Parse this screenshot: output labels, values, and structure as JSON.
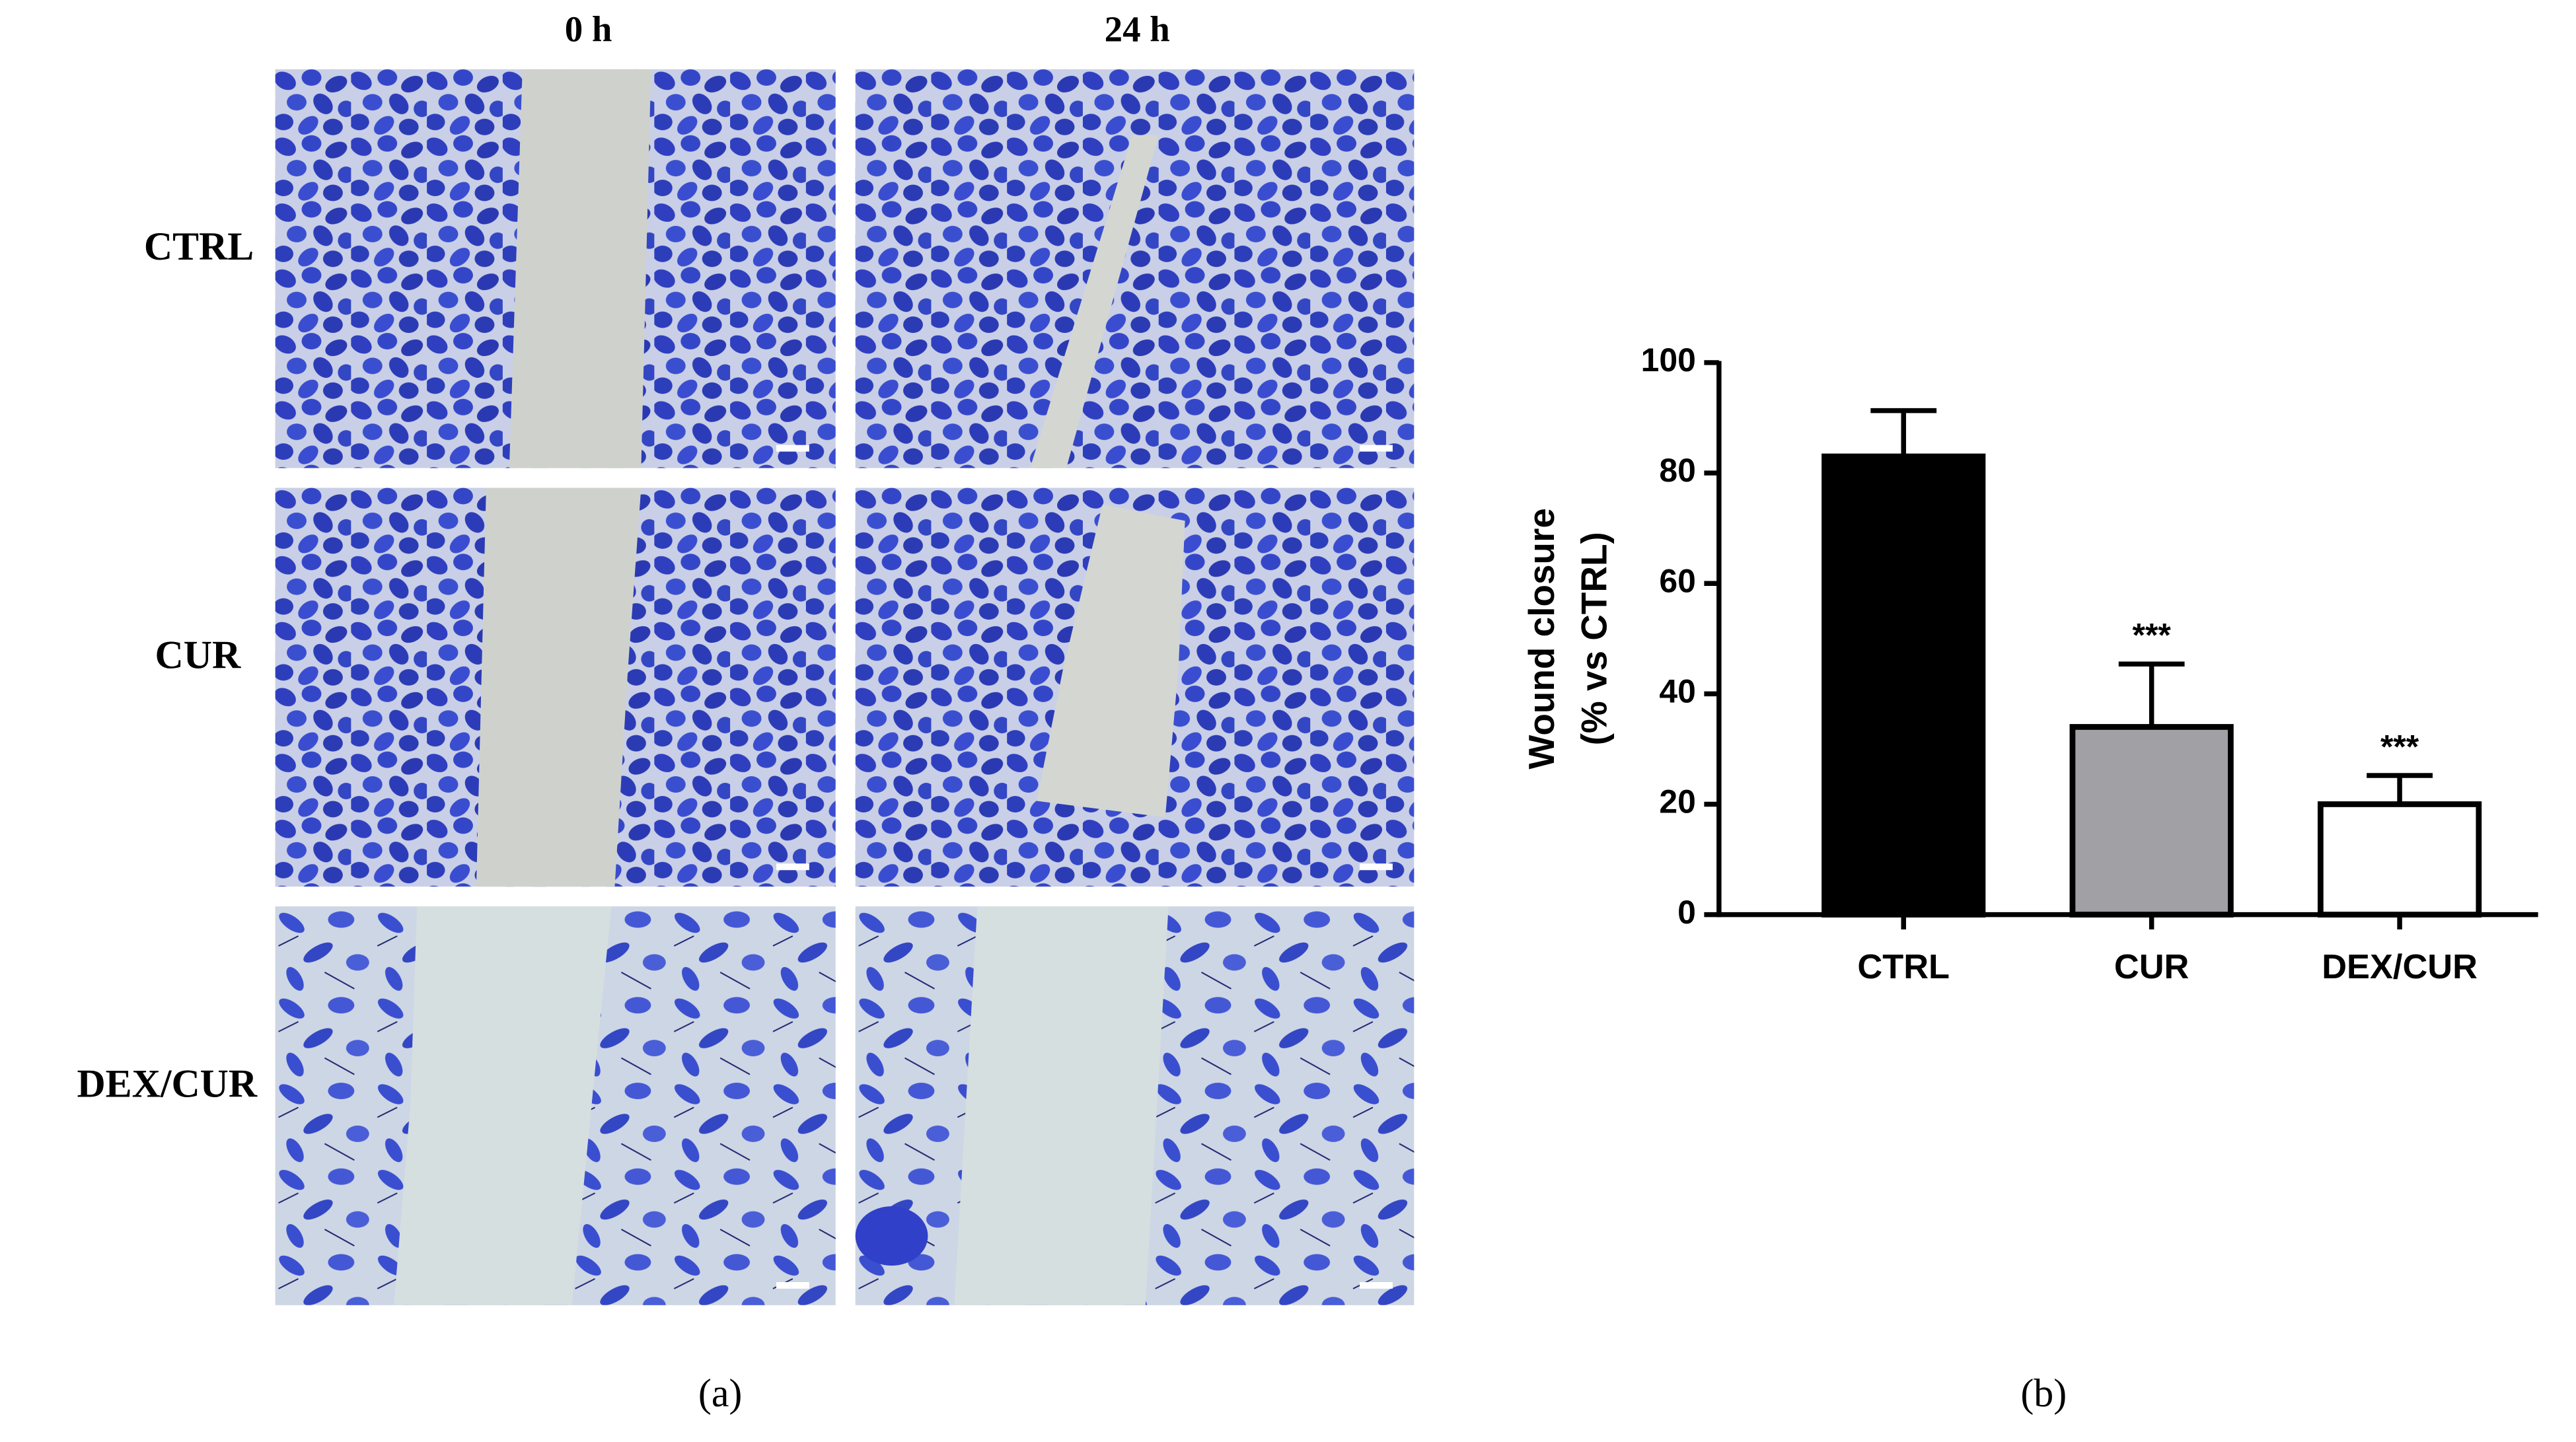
{
  "panel_a": {
    "label": "(a)",
    "columns": [
      "0 h",
      "24 h"
    ],
    "rows": [
      "CTRL",
      "CUR",
      "DEX/CUR"
    ]
  },
  "panel_b": {
    "label": "(b)"
  },
  "chart_data": {
    "type": "bar",
    "y_label": [
      "Wound closure",
      "(% vs CTRL)"
    ],
    "categories": [
      "CTRL",
      "CUR",
      "DEX/CUR"
    ],
    "values": [
      83,
      34,
      20
    ],
    "errors": [
      8.3,
      11.4,
      5.2
    ],
    "colors": [
      "#000000",
      "#a1a1a5",
      "#ffffff"
    ],
    "annotations": [
      null,
      "***",
      "***"
    ],
    "ylim": [
      0,
      100
    ],
    "yticks": [
      0,
      20,
      40,
      60,
      80,
      100
    ]
  }
}
